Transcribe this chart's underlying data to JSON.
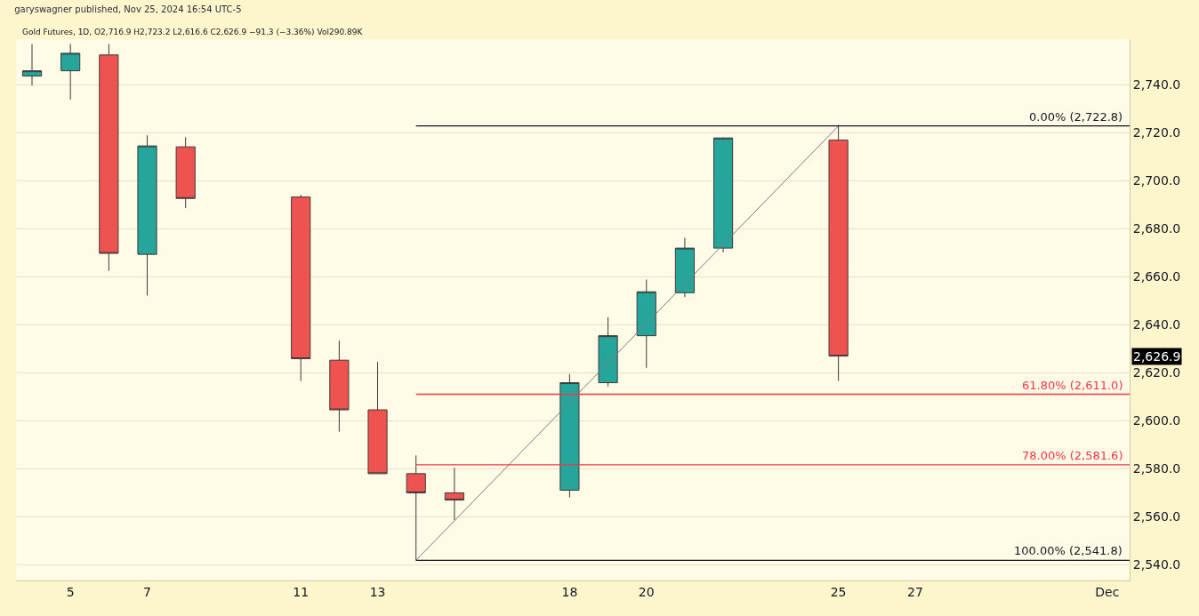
{
  "chart_data": {
    "type": "candlestick",
    "title": "garyswagner published, Nov 25, 2024 16:54 UTC-5",
    "subtitle": "Gold Futures, 1D, O2,716.9 H2,723.2 L2,616.6 C2,626.9 −91.3 (−3.36%) Vol290.89K",
    "x": [
      "2024-11-04",
      "2024-11-05",
      "2024-11-06",
      "2024-11-07",
      "2024-11-08",
      "2024-11-11",
      "2024-11-12",
      "2024-11-13",
      "2024-11-14",
      "2024-11-15",
      "2024-11-18",
      "2024-11-19",
      "2024-11-20",
      "2024-11-21",
      "2024-11-22",
      "2024-11-25"
    ],
    "ohlc": [
      [
        2743.6,
        2757,
        2739.6,
        2745.8
      ],
      [
        2745.8,
        2757,
        2733.8,
        2753.1
      ],
      [
        2752.4,
        2757,
        2662.4,
        2669.7
      ],
      [
        2669.3,
        2718.9,
        2652.2,
        2714.5
      ],
      [
        2714.1,
        2718.1,
        2688.6,
        2692.6
      ],
      [
        2693.2,
        2694.1,
        2616.5,
        2625.8
      ],
      [
        2625.2,
        2633.3,
        2595.4,
        2604.5
      ],
      [
        2604.5,
        2624.5,
        2577.9,
        2577.9
      ],
      [
        2577.9,
        2585.5,
        2541.8,
        2569.9
      ],
      [
        2569.9,
        2580.4,
        2558.6,
        2566.9
      ],
      [
        2571.0,
        2619.4,
        2568.0,
        2615.8
      ],
      [
        2615.8,
        2643.1,
        2614.3,
        2635.4
      ],
      [
        2635.4,
        2658.8,
        2622.0,
        2653.7
      ],
      [
        2653.3,
        2676.2,
        2651.5,
        2671.9
      ],
      [
        2671.9,
        2718.1,
        2670.1,
        2717.8
      ],
      [
        2716.9,
        2723.2,
        2616.6,
        2626.9
      ]
    ],
    "colors": [
      "#26a69a",
      "#26a69a",
      "#ef5350",
      "#26a69a",
      "#ef5350",
      "#ef5350",
      "#ef5350",
      "#ef5350",
      "#ef5350",
      "#ef5350",
      "#26a69a",
      "#26a69a",
      "#26a69a",
      "#26a69a",
      "#26a69a",
      "#ef5350"
    ],
    "series": [
      {
        "type": "line",
        "x": [
          "2024-11-14",
          "2024-11-25"
        ],
        "values": [
          2541.8,
          2722.8
        ],
        "color": "#787b86"
      }
    ],
    "ref_lines": [
      {
        "axis": "y",
        "value": 2722.8,
        "label": "0.00% (2,722.8)",
        "color": "#131722"
      },
      {
        "axis": "y",
        "value": 2611.0,
        "label": "61.80% (2,611.0)",
        "color": "#f23645"
      },
      {
        "axis": "y",
        "value": 2581.6,
        "label": "78.00% (2,581.6)",
        "color": "#f23645"
      },
      {
        "axis": "y",
        "value": 2541.8,
        "label": "100.00% (2,541.8)",
        "color": "#131722"
      }
    ],
    "annotations": [
      "2,626.9"
    ],
    "xlim": [
      "2024-11-03T14:00",
      "2024-12-02T14:00"
    ],
    "xticks": [
      {
        "value": "2024-11-05",
        "label": "5"
      },
      {
        "value": "2024-11-07",
        "label": "7"
      },
      {
        "value": "2024-11-11",
        "label": "11"
      },
      {
        "value": "2024-11-13",
        "label": "13"
      },
      {
        "value": "2024-11-18",
        "label": "18"
      },
      {
        "value": "2024-11-20",
        "label": "20"
      },
      {
        "value": "2024-11-25",
        "label": "25"
      },
      {
        "value": "2024-11-27",
        "label": "27"
      },
      {
        "value": "2024-12-02",
        "label": "Dec"
      }
    ],
    "ylim": [
      2533.4,
      2759
    ],
    "yticks": [
      {
        "value": 2540,
        "label": "2,540.0"
      },
      {
        "value": 2560,
        "label": "2,560.0"
      },
      {
        "value": 2580,
        "label": "2,580.0"
      },
      {
        "value": 2600,
        "label": "2,600.0"
      },
      {
        "value": 2620,
        "label": "2,620.0"
      },
      {
        "value": 2640,
        "label": "2,640.0"
      },
      {
        "value": 2660,
        "label": "2,660.0"
      },
      {
        "value": 2680,
        "label": "2,680.0"
      },
      {
        "value": 2700,
        "label": "2,700.0"
      },
      {
        "value": 2720,
        "label": "2,720.0"
      },
      {
        "value": 2740,
        "label": "2,740.0"
      }
    ],
    "grid": "y"
  }
}
